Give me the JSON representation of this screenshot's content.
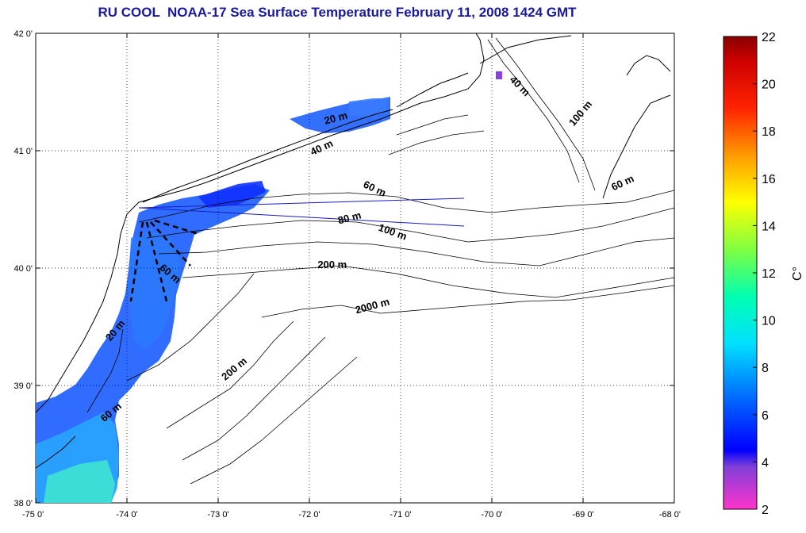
{
  "title": "RU COOL  NOAA-17 Sea Surface Temperature February 11, 2008 1424 GMT",
  "map": {
    "lon_range": [
      -75,
      -68
    ],
    "lat_range": [
      38,
      42
    ],
    "x_ticks": [
      "-75 0'",
      "-74 0'",
      "-73 0'",
      "-72 0'",
      "-71 0'",
      "-70 0'",
      "-69 0'",
      "-68 0'"
    ],
    "y_ticks": [
      "42 0'",
      "41 0'",
      "40 0'",
      "39 0'",
      "38 0'"
    ],
    "grid": "dotted",
    "isobath_labels": [
      {
        "text": "20 m",
        "lon": -71.7,
        "lat": 41.25,
        "angle": -15
      },
      {
        "text": "40 m",
        "lon": -71.85,
        "lat": 41.0,
        "angle": -25
      },
      {
        "text": "40 m",
        "lon": -69.72,
        "lat": 41.53,
        "angle": 45
      },
      {
        "text": "100 m",
        "lon": -69.0,
        "lat": 41.3,
        "angle": -50
      },
      {
        "text": "60 m",
        "lon": -68.55,
        "lat": 40.7,
        "angle": -25
      },
      {
        "text": "60 m",
        "lon": -71.3,
        "lat": 40.65,
        "angle": 25
      },
      {
        "text": "80 m",
        "lon": -71.55,
        "lat": 40.4,
        "angle": -15
      },
      {
        "text": "100 m",
        "lon": -71.1,
        "lat": 40.28,
        "angle": 20
      },
      {
        "text": "200 m",
        "lon": -71.75,
        "lat": 40.0,
        "angle": 0
      },
      {
        "text": "2000 m",
        "lon": -71.3,
        "lat": 39.65,
        "angle": -15
      },
      {
        "text": "60 m",
        "lon": -73.55,
        "lat": 39.93,
        "angle": 40
      },
      {
        "text": "20 m",
        "lon": -74.1,
        "lat": 39.45,
        "angle": -50
      },
      {
        "text": "200 m",
        "lon": -72.8,
        "lat": 39.12,
        "angle": -40
      },
      {
        "text": "60 m",
        "lon": -74.15,
        "lat": 38.75,
        "angle": -40
      }
    ],
    "colors": {
      "land_bg": "#ffffff",
      "title": "#1a1aa0",
      "contour": "#000000",
      "transect": "#1a1ac8"
    }
  },
  "colorbar": {
    "unit": "C°",
    "range": [
      2,
      22
    ],
    "ticks": [
      "22",
      "20",
      "18",
      "16",
      "14",
      "12",
      "10",
      "8",
      "6",
      "4",
      "2"
    ],
    "stops": [
      {
        "value": 2,
        "color": "#ff33cc"
      },
      {
        "value": 3.8,
        "color": "#8040d8"
      },
      {
        "value": 4.5,
        "color": "#0000ff"
      },
      {
        "value": 6.5,
        "color": "#0060ff"
      },
      {
        "value": 9,
        "color": "#00e0ff"
      },
      {
        "value": 11,
        "color": "#00ffb0"
      },
      {
        "value": 13,
        "color": "#80ff40"
      },
      {
        "value": 15,
        "color": "#ffff00"
      },
      {
        "value": 17,
        "color": "#ff9900"
      },
      {
        "value": 19,
        "color": "#ff2200"
      },
      {
        "value": 21,
        "color": "#cc0000"
      },
      {
        "value": 22,
        "color": "#880000"
      }
    ]
  }
}
